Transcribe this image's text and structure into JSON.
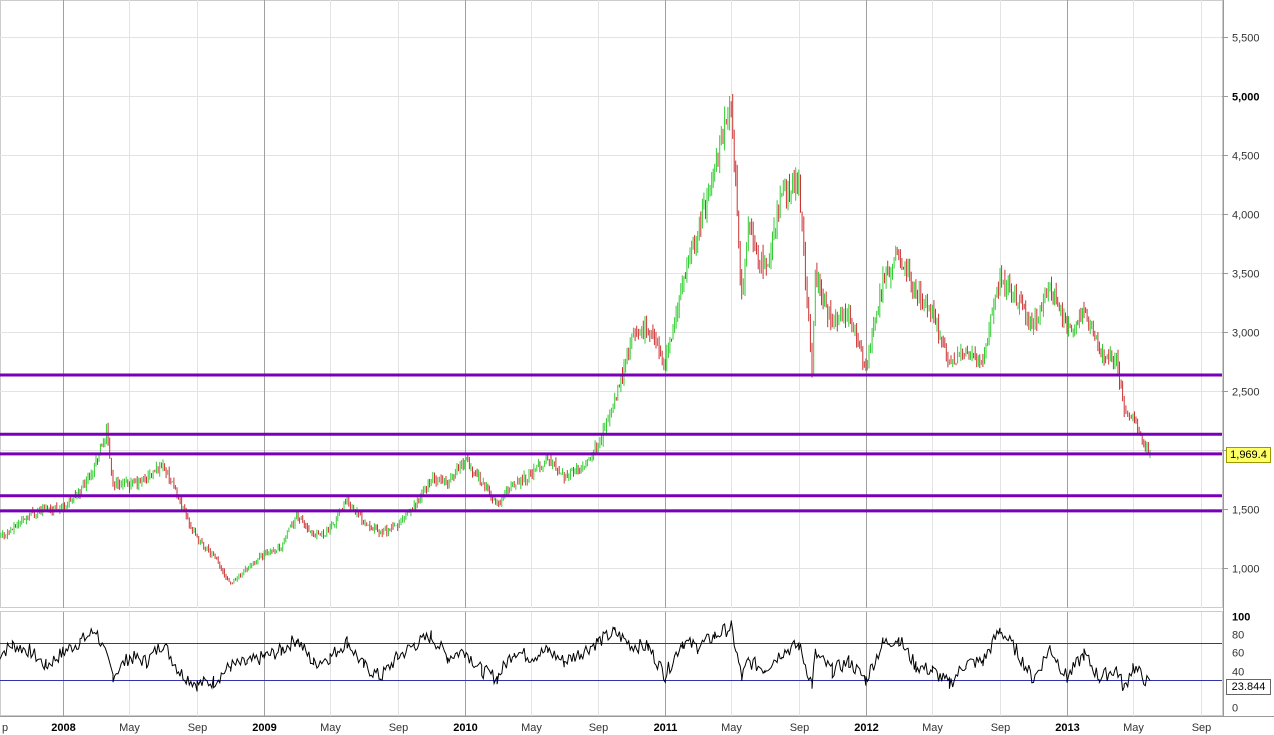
{
  "chart_data": [
    {
      "type": "candlestick",
      "title": "",
      "ylim": [
        800,
        5800
      ],
      "y_ticks": [
        "1,000",
        "1,500",
        "2,000",
        "2,500",
        "3,000",
        "3,500",
        "4,000",
        "4,500",
        "5,000",
        "5,500"
      ],
      "y_tick_values": [
        1000,
        1500,
        2000,
        2500,
        3000,
        3500,
        4000,
        4500,
        5000,
        5500
      ],
      "last_value_label": "1,969.4",
      "up_color": "#33cc33",
      "down_color": "#cc3333",
      "support_lines": [
        2636,
        2134,
        1967,
        1612,
        1484
      ],
      "support_color": "#7a00b8",
      "price_path": [
        [
          "2007-09",
          1240
        ],
        [
          "2007-10",
          1330
        ],
        [
          "2007-11",
          1460
        ],
        [
          "2007-12",
          1500
        ],
        [
          "2008-01",
          1520
        ],
        [
          "2008-02",
          1650
        ],
        [
          "2008-03",
          1900
        ],
        [
          "2008-03-20",
          2150
        ],
        [
          "2008-04",
          1720
        ],
        [
          "2008-05",
          1700
        ],
        [
          "2008-06",
          1760
        ],
        [
          "2008-07",
          1880
        ],
        [
          "2008-08",
          1560
        ],
        [
          "2008-09",
          1240
        ],
        [
          "2008-10",
          1100
        ],
        [
          "2008-11",
          870
        ],
        [
          "2008-12",
          1000
        ],
        [
          "2009-01",
          1120
        ],
        [
          "2009-02",
          1180
        ],
        [
          "2009-03",
          1450
        ],
        [
          "2009-04",
          1260
        ],
        [
          "2009-05",
          1320
        ],
        [
          "2009-06",
          1580
        ],
        [
          "2009-07",
          1400
        ],
        [
          "2009-08",
          1300
        ],
        [
          "2009-09",
          1360
        ],
        [
          "2009-10",
          1520
        ],
        [
          "2009-11",
          1750
        ],
        [
          "2009-12",
          1730
        ],
        [
          "2010-01",
          1920
        ],
        [
          "2010-02",
          1730
        ],
        [
          "2010-03",
          1540
        ],
        [
          "2010-04",
          1720
        ],
        [
          "2010-05",
          1800
        ],
        [
          "2010-06",
          1920
        ],
        [
          "2010-07",
          1790
        ],
        [
          "2010-08",
          1850
        ],
        [
          "2010-09",
          2050
        ],
        [
          "2010-10",
          2400
        ],
        [
          "2010-11",
          2950
        ],
        [
          "2010-12",
          3050
        ],
        [
          "2011-01",
          2720
        ],
        [
          "2011-02",
          3400
        ],
        [
          "2011-03",
          3850
        ],
        [
          "2011-04",
          4400
        ],
        [
          "2011-05",
          4950
        ],
        [
          "2011-05-20",
          3300
        ],
        [
          "2011-06",
          3900
        ],
        [
          "2011-07",
          3500
        ],
        [
          "2011-08",
          4150
        ],
        [
          "2011-09",
          4300
        ],
        [
          "2011-09-25",
          2700
        ],
        [
          "2011-10",
          3500
        ],
        [
          "2011-11",
          3050
        ],
        [
          "2011-12",
          3150
        ],
        [
          "2012-01",
          2700
        ],
        [
          "2012-02",
          3450
        ],
        [
          "2012-03",
          3650
        ],
        [
          "2012-04",
          3350
        ],
        [
          "2012-05",
          3150
        ],
        [
          "2012-06",
          2750
        ],
        [
          "2012-07",
          2820
        ],
        [
          "2012-08",
          2760
        ],
        [
          "2012-09",
          3450
        ],
        [
          "2012-10",
          3300
        ],
        [
          "2012-11",
          3050
        ],
        [
          "2012-12",
          3400
        ],
        [
          "2013-01",
          3000
        ],
        [
          "2013-02",
          3200
        ],
        [
          "2013-03",
          2850
        ],
        [
          "2013-04",
          2750
        ],
        [
          "2013-04-15",
          2350
        ],
        [
          "2013-05",
          2250
        ],
        [
          "2013-06",
          1969
        ]
      ]
    },
    {
      "type": "line",
      "title": "",
      "ylim": [
        0,
        100
      ],
      "y_ticks": [
        "100",
        "80",
        "60",
        "40",
        "20",
        "0"
      ],
      "y_tick_values": [
        100,
        80,
        60,
        40,
        20,
        0
      ],
      "overbought": 70,
      "oversold": 30,
      "last_value_label": "23.844",
      "line_color": "#000000",
      "band_color": "#3333aa",
      "rsi_path": [
        [
          "2007-09",
          55
        ],
        [
          "2007-10",
          68
        ],
        [
          "2007-11",
          62
        ],
        [
          "2007-12",
          45
        ],
        [
          "2008-01",
          60
        ],
        [
          "2008-02",
          72
        ],
        [
          "2008-03",
          84
        ],
        [
          "2008-04",
          35
        ],
        [
          "2008-05",
          55
        ],
        [
          "2008-06",
          50
        ],
        [
          "2008-07",
          70
        ],
        [
          "2008-08",
          38
        ],
        [
          "2008-09",
          25
        ],
        [
          "2008-10",
          28
        ],
        [
          "2008-11",
          45
        ],
        [
          "2008-12",
          48
        ],
        [
          "2009-01",
          55
        ],
        [
          "2009-02",
          62
        ],
        [
          "2009-03",
          75
        ],
        [
          "2009-04",
          48
        ],
        [
          "2009-05",
          55
        ],
        [
          "2009-06",
          72
        ],
        [
          "2009-07",
          45
        ],
        [
          "2009-08",
          33
        ],
        [
          "2009-09",
          55
        ],
        [
          "2009-10",
          68
        ],
        [
          "2009-11",
          78
        ],
        [
          "2009-12",
          55
        ],
        [
          "2010-01",
          62
        ],
        [
          "2010-02",
          40
        ],
        [
          "2010-03",
          32
        ],
        [
          "2010-04",
          62
        ],
        [
          "2010-05",
          55
        ],
        [
          "2010-06",
          62
        ],
        [
          "2010-07",
          50
        ],
        [
          "2010-08",
          60
        ],
        [
          "2010-09",
          72
        ],
        [
          "2010-10",
          82
        ],
        [
          "2010-11",
          68
        ],
        [
          "2010-12",
          66
        ],
        [
          "2011-01",
          35
        ],
        [
          "2011-02",
          72
        ],
        [
          "2011-03",
          66
        ],
        [
          "2011-04",
          78
        ],
        [
          "2011-05",
          88
        ],
        [
          "2011-05-20",
          32
        ],
        [
          "2011-06",
          50
        ],
        [
          "2011-07",
          42
        ],
        [
          "2011-08",
          60
        ],
        [
          "2011-09",
          68
        ],
        [
          "2011-09-25",
          25
        ],
        [
          "2011-10",
          58
        ],
        [
          "2011-11",
          40
        ],
        [
          "2011-12",
          50
        ],
        [
          "2012-01",
          30
        ],
        [
          "2012-02",
          70
        ],
        [
          "2012-03",
          75
        ],
        [
          "2012-04",
          45
        ],
        [
          "2012-05",
          40
        ],
        [
          "2012-06",
          25
        ],
        [
          "2012-07",
          48
        ],
        [
          "2012-08",
          50
        ],
        [
          "2012-09",
          85
        ],
        [
          "2012-10",
          62
        ],
        [
          "2012-11",
          30
        ],
        [
          "2012-12",
          65
        ],
        [
          "2013-01",
          32
        ],
        [
          "2013-02",
          58
        ],
        [
          "2013-03",
          32
        ],
        [
          "2013-04",
          42
        ],
        [
          "2013-04-15",
          20
        ],
        [
          "2013-05",
          45
        ],
        [
          "2013-06",
          24
        ]
      ]
    }
  ],
  "x_axis": {
    "labels": [
      "p",
      "2008",
      "May",
      "Sep",
      "2009",
      "May",
      "Sep",
      "2010",
      "May",
      "Sep",
      "2011",
      "May",
      "Sep",
      "2012",
      "May",
      "Sep",
      "2013",
      "May",
      "Sep"
    ],
    "dates": [
      "2007-09",
      "2008-01",
      "2008-05",
      "2008-09",
      "2009-01",
      "2009-05",
      "2009-09",
      "2010-01",
      "2010-05",
      "2010-09",
      "2011-01",
      "2011-05",
      "2011-09",
      "2012-01",
      "2012-05",
      "2012-09",
      "2013-01",
      "2013-05",
      "2013-09"
    ],
    "bold": [
      false,
      true,
      false,
      false,
      true,
      false,
      false,
      true,
      false,
      false,
      true,
      false,
      false,
      true,
      false,
      false,
      true,
      false,
      false
    ],
    "date_range": [
      "2007-09",
      "2013-09"
    ]
  }
}
